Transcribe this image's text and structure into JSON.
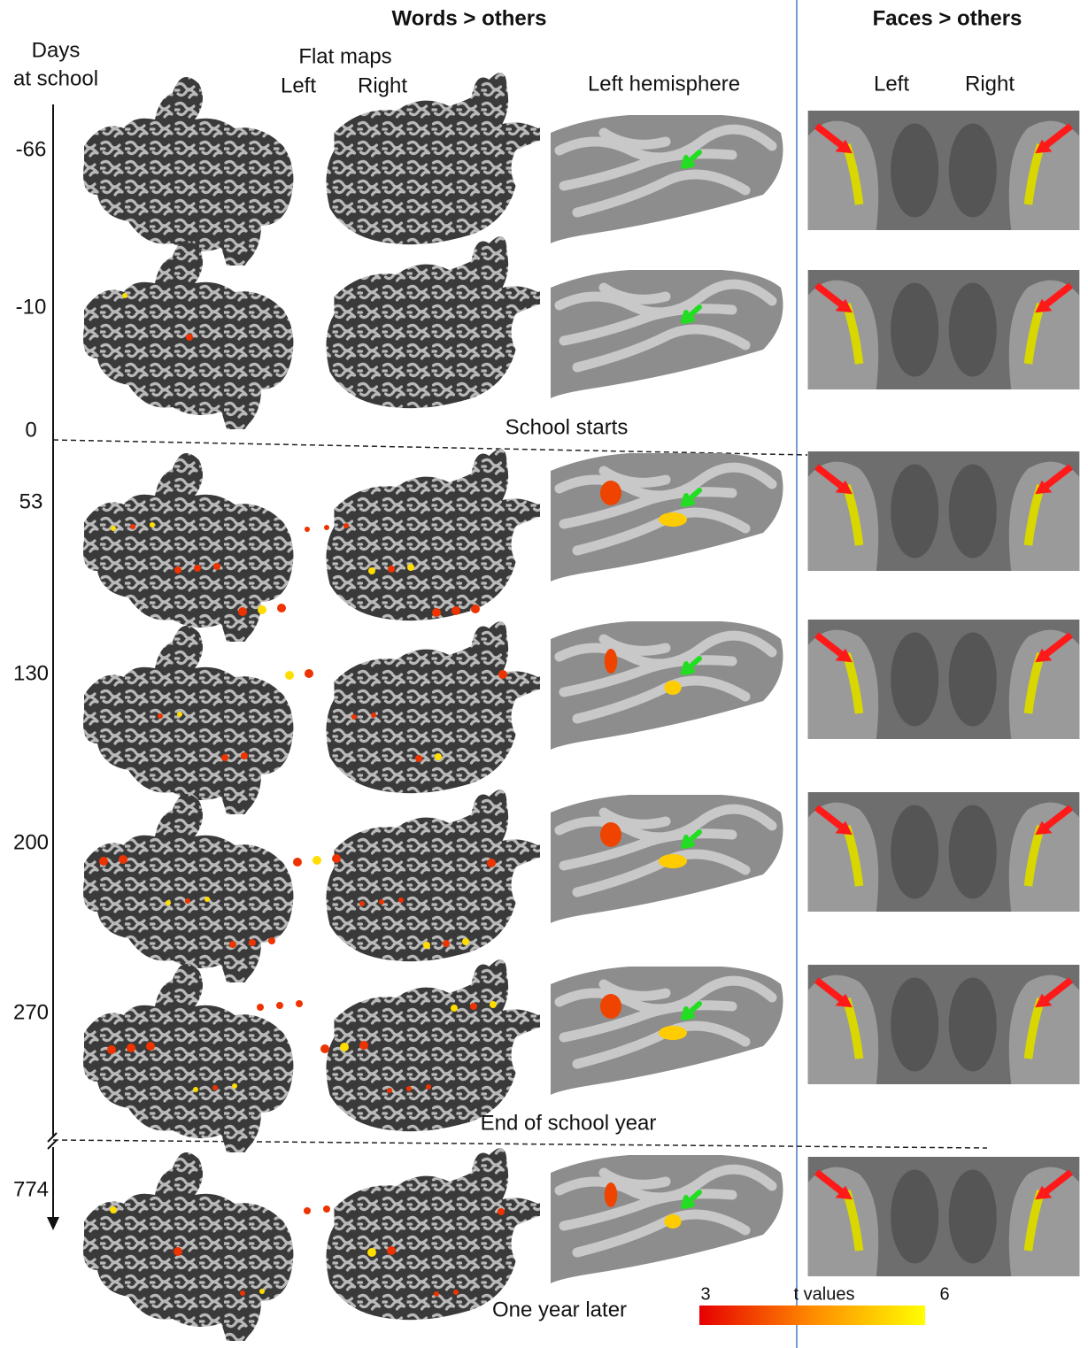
{
  "header": {
    "words_title": "Words > others",
    "faces_title": "Faces > others"
  },
  "axis": {
    "title_line1": "Days",
    "title_line2": "at school",
    "rows": [
      "-66",
      "-10",
      "0",
      "53",
      "130",
      "200",
      "270",
      "774"
    ]
  },
  "columns": {
    "flat_maps": "Flat maps",
    "flat_left": "Left",
    "flat_right": "Right",
    "left_hemisphere": "Left hemisphere",
    "faces_left": "Left",
    "faces_right": "Right"
  },
  "annotations": {
    "school_starts": "School starts",
    "end_of_school_year": "End of school year",
    "one_year_later": "One year later"
  },
  "colorbar": {
    "min": "3",
    "label": "t values",
    "max": "6"
  }
}
